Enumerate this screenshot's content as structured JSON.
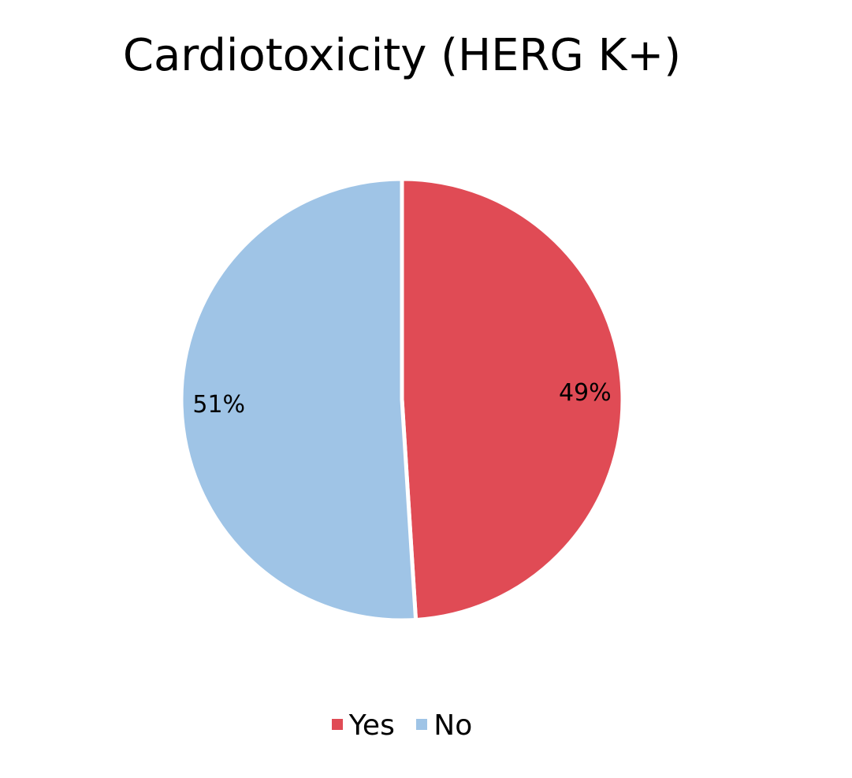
{
  "chart_data": {
    "type": "pie",
    "title": "Cardiotoxicity (HERG K+)",
    "slices": [
      {
        "label": "Yes",
        "value": 49,
        "display": "49%",
        "color": "#e04b55"
      },
      {
        "label": "No",
        "value": 51,
        "display": "51%",
        "color": "#9fc4e6"
      }
    ],
    "legend_position": "bottom"
  }
}
